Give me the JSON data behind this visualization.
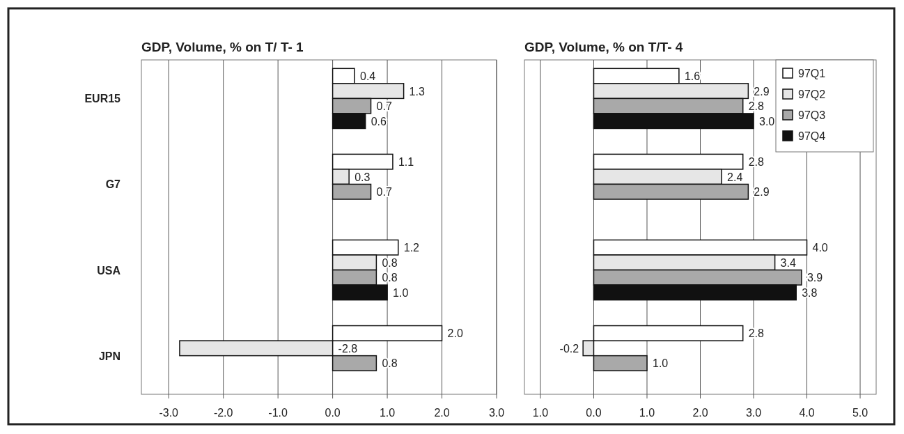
{
  "chart_data": [
    {
      "type": "bar",
      "orientation": "horizontal",
      "title": "GDP, Volume, % on T/ T- 1",
      "categories": [
        "EUR15",
        "G7",
        "USA",
        "JPN"
      ],
      "series": [
        {
          "color": "#ffffff",
          "values": [
            0.4,
            1.1,
            1.2,
            2.0
          ],
          "value_labels": [
            "0.4",
            "1.1",
            "1.2",
            "2.0"
          ]
        },
        {
          "color": "#e6e6e6",
          "values": [
            1.3,
            0.3,
            0.8,
            -2.8
          ],
          "value_labels": [
            "1.3",
            "0.3",
            "0.8",
            "-2.8"
          ]
        },
        {
          "color": "#a9a9a9",
          "values": [
            0.7,
            0.7,
            0.8,
            0.8
          ],
          "value_labels": [
            "0.7",
            "0.7",
            "0.8",
            "0.8"
          ]
        },
        {
          "color": "#111111",
          "values": [
            0.6,
            null,
            1.0,
            null
          ],
          "value_labels": [
            "0.6",
            null,
            "1.0",
            null
          ]
        }
      ],
      "xlim": [
        -3.5,
        3
      ],
      "xticks": [
        {
          "value": -3,
          "label": "-3.0"
        },
        {
          "value": -2,
          "label": "-2.0"
        },
        {
          "value": -1,
          "label": "-1.0"
        },
        {
          "value": 0,
          "label": "0.0"
        },
        {
          "value": 1,
          "label": "1.0"
        },
        {
          "value": 2,
          "label": "2.0"
        },
        {
          "value": 3,
          "label": "3.0"
        }
      ],
      "grid": "x",
      "legend": false
    },
    {
      "type": "bar",
      "orientation": "horizontal",
      "title": "GDP, Volume, % on T/T- 4",
      "categories": [
        null,
        null,
        null,
        null
      ],
      "series": [
        {
          "name": "97Q1",
          "color": "#ffffff",
          "values": [
            1.6,
            2.8,
            4.0,
            2.8
          ],
          "value_labels": [
            "1.6",
            "2.8",
            "4.0",
            "2.8"
          ]
        },
        {
          "name": "97Q2",
          "color": "#e6e6e6",
          "values": [
            2.9,
            2.4,
            3.4,
            -0.2
          ],
          "value_labels": [
            "2.9",
            "2.4",
            "3.4",
            "-0.2"
          ]
        },
        {
          "name": "97Q3",
          "color": "#a9a9a9",
          "values": [
            2.8,
            2.9,
            3.9,
            1.0
          ],
          "value_labels": [
            "2.8",
            "2.9",
            "3.9",
            "1.0"
          ]
        },
        {
          "name": "97Q4",
          "color": "#111111",
          "values": [
            3.0,
            null,
            3.8,
            null
          ],
          "value_labels": [
            "3.0",
            null,
            "3.8",
            null
          ]
        }
      ],
      "xlim": [
        -1.3,
        5.3
      ],
      "xticks": [
        {
          "value": -1,
          "label": "1.0"
        },
        {
          "value": 0,
          "label": "0.0"
        },
        {
          "value": 1,
          "label": "1.0"
        },
        {
          "value": 2,
          "label": "2.0"
        },
        {
          "value": 3,
          "label": "3.0"
        },
        {
          "value": 4,
          "label": "4.0"
        },
        {
          "value": 5,
          "label": "5.0"
        }
      ],
      "grid": "x",
      "legend": "top right",
      "tick_labels": "x"
    }
  ]
}
